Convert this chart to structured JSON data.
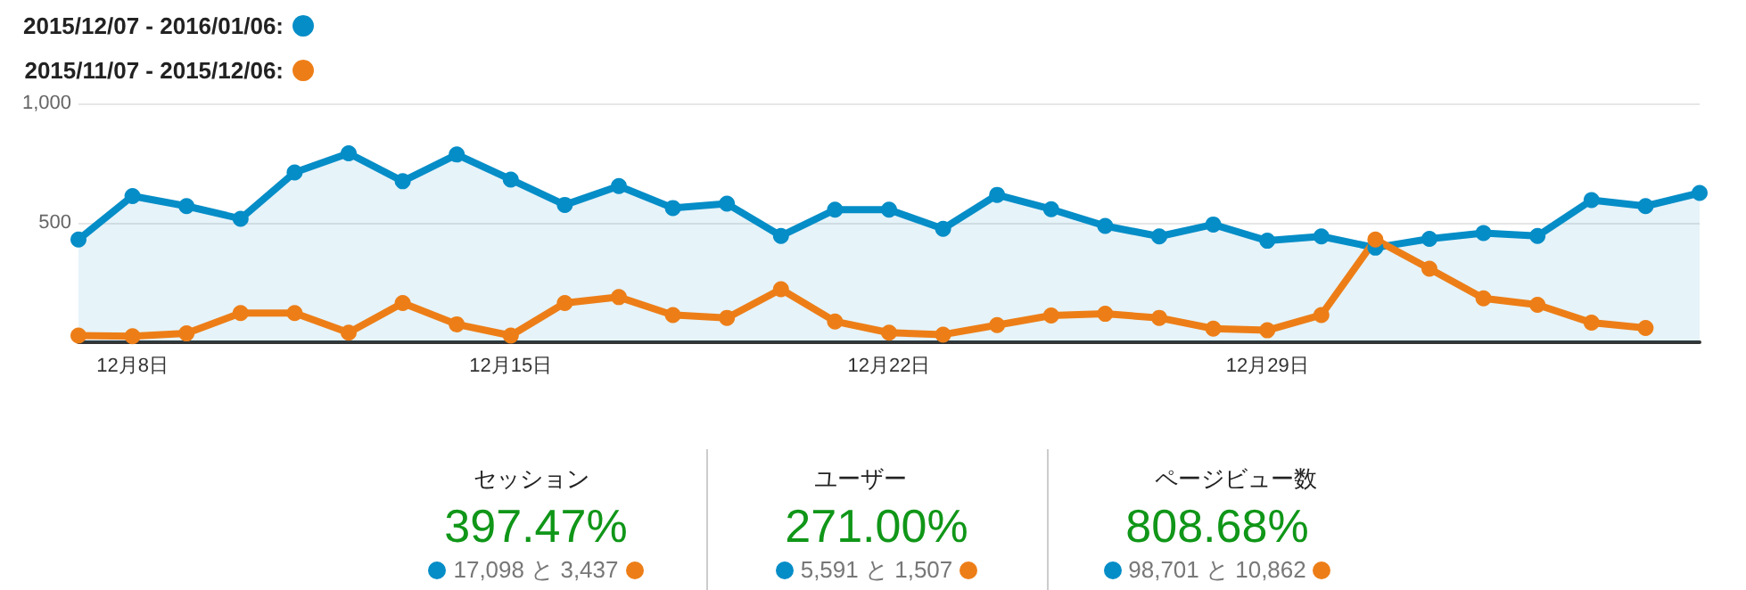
{
  "chart_data": [
    {
      "type": "line",
      "categories": [
        null,
        "12月8日",
        null,
        null,
        null,
        null,
        null,
        null,
        "12月15日",
        null,
        null,
        null,
        null,
        null,
        null,
        "12月22日",
        null,
        null,
        null,
        null,
        null,
        null,
        "12月29日",
        null,
        null,
        null,
        null,
        null,
        null,
        null,
        null
      ],
      "series": [
        {
          "name": "2015/12/07 - 2016/01/06:",
          "type": "area",
          "color": "#058dc7",
          "values": [
            430,
            612,
            570,
            517,
            711,
            791,
            674,
            786,
            681,
            575,
            654,
            562,
            580,
            445,
            555,
            555,
            475,
            617,
            557,
            487,
            443,
            493,
            425,
            443,
            396,
            433,
            457,
            445,
            595,
            570,
            625
          ]
        },
        {
          "name": "2015/11/07 - 2015/12/06:",
          "type": "line",
          "color": "#ed7e17",
          "values": [
            28,
            25,
            37,
            122,
            122,
            40,
            164,
            75,
            28,
            164,
            189,
            114,
            102,
            222,
            87,
            40,
            32,
            72,
            112,
            119,
            102,
            57,
            50,
            114,
            430,
            308,
            184,
            157,
            82,
            60,
            null
          ]
        }
      ],
      "ylim": [
        0,
        1000
      ],
      "yticks": [
        500,
        {
          "value": 1000,
          "label": "1,000"
        }
      ],
      "grid": "y",
      "legend": "top left",
      "marker": "circle"
    },
    {
      "type": "other",
      "annotations": [
        "セッション",
        "397.47%",
        "17,098 と 3,437",
        "ユーザー",
        "271.00%",
        "5,591 と 1,507",
        "ページビュー数",
        "808.68%",
        "98,701 と 10,862"
      ]
    }
  ]
}
